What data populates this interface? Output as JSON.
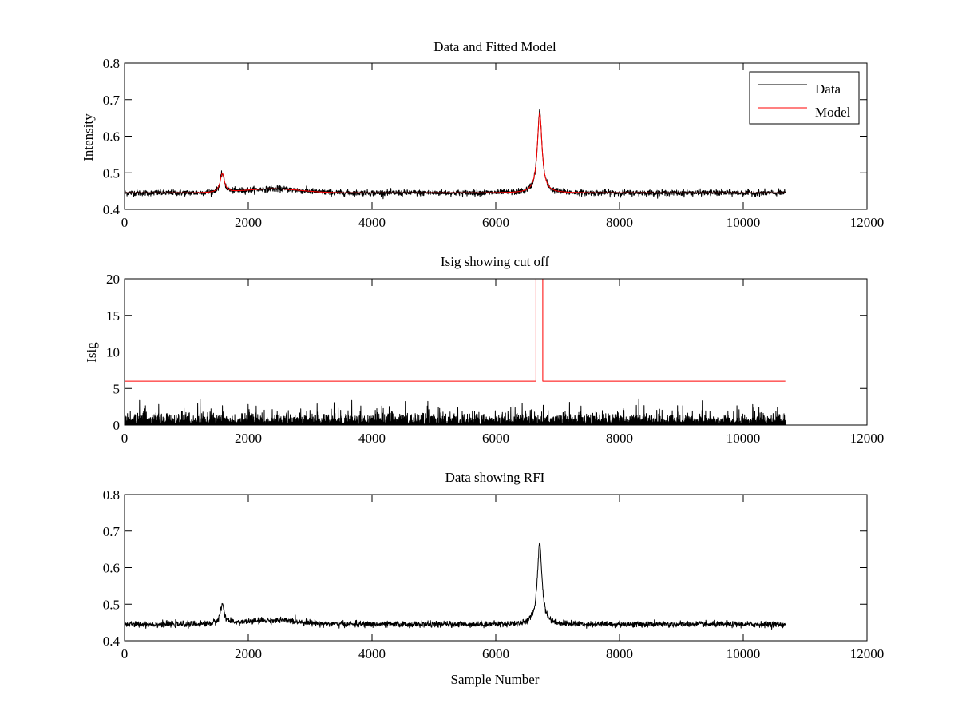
{
  "chart_data": [
    {
      "type": "line",
      "title": "Data and Fitted Model",
      "xlabel": "",
      "ylabel": "Intensity",
      "xlim": [
        0,
        12000
      ],
      "ylim": [
        0.4,
        0.8
      ],
      "xticks": [
        0,
        2000,
        4000,
        6000,
        8000,
        10000,
        12000
      ],
      "yticks": [
        0.4,
        0.5,
        0.6,
        0.7,
        0.8
      ],
      "ytick_labels": [
        "0.4",
        "0.5",
        "0.6",
        "0.7",
        "0.8"
      ],
      "legend_placement": "top-right",
      "x_range": [
        0,
        10680
      ],
      "series": [
        {
          "name": "Data",
          "color": "#000000",
          "kind": "spectrum",
          "baseline": 0.445,
          "noise": 0.004,
          "hump": {
            "center": 2400,
            "width": 450,
            "height": 0.011
          },
          "peaks": [
            {
              "center": 1580,
              "width": 40,
              "height": 0.052
            },
            {
              "center": 6710,
              "width": 45,
              "height": 0.22
            }
          ]
        },
        {
          "name": "Model",
          "color": "#ff0000",
          "kind": "spectrum",
          "baseline": 0.445,
          "noise": 0.0,
          "hump": {
            "center": 2400,
            "width": 450,
            "height": 0.011
          },
          "peaks": [
            {
              "center": 1580,
              "width": 40,
              "height": 0.052
            },
            {
              "center": 6710,
              "width": 45,
              "height": 0.22
            }
          ]
        }
      ]
    },
    {
      "type": "line",
      "title": "Isig showing cut off",
      "xlabel": "",
      "ylabel": "Isig",
      "xlim": [
        0,
        12000
      ],
      "ylim": [
        0,
        20
      ],
      "xticks": [
        0,
        2000,
        4000,
        6000,
        8000,
        10000,
        12000
      ],
      "yticks": [
        0,
        5,
        10,
        15,
        20
      ],
      "ytick_labels": [
        "0",
        "5",
        "10",
        "15",
        "20"
      ],
      "x_range": [
        0,
        10680
      ],
      "series": [
        {
          "color": "#000000",
          "kind": "noise",
          "max_typical": 2.2,
          "max_spike": 3.6
        },
        {
          "color": "#ff0000",
          "kind": "cutoff",
          "level": 6,
          "gap_start": 6650,
          "gap_end": 6760,
          "gap_level": 20
        }
      ]
    },
    {
      "type": "line",
      "title": "Data showing RFI",
      "xlabel": "Sample Number",
      "ylabel": "",
      "xlim": [
        0,
        12000
      ],
      "ylim": [
        0.4,
        0.8
      ],
      "xticks": [
        0,
        2000,
        4000,
        6000,
        8000,
        10000,
        12000
      ],
      "yticks": [
        0.4,
        0.5,
        0.6,
        0.7,
        0.8
      ],
      "ytick_labels": [
        "0.4",
        "0.5",
        "0.6",
        "0.7",
        "0.8"
      ],
      "x_range": [
        0,
        10680
      ],
      "series": [
        {
          "color": "#000000",
          "kind": "spectrum",
          "baseline": 0.445,
          "noise": 0.004,
          "hump": {
            "center": 2400,
            "width": 450,
            "height": 0.011
          },
          "peaks": [
            {
              "center": 1580,
              "width": 40,
              "height": 0.052
            },
            {
              "center": 6710,
              "width": 45,
              "height": 0.22
            }
          ]
        }
      ]
    }
  ]
}
